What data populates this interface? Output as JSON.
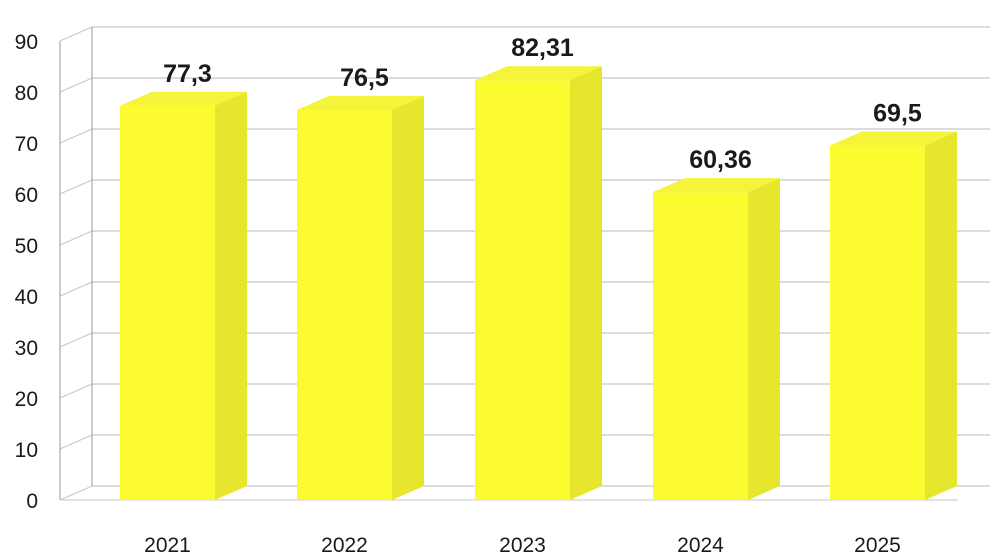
{
  "chart_data": {
    "type": "bar",
    "categories": [
      "2021",
      "2022",
      "2023",
      "2024",
      "2025"
    ],
    "values": [
      77.3,
      76.5,
      82.31,
      60.36,
      69.5
    ],
    "value_labels": [
      "77,3",
      "76,5",
      "82,31",
      "60,36",
      "69,5"
    ],
    "y_ticks": [
      "0",
      "10",
      "20",
      "30",
      "40",
      "50",
      "60",
      "70",
      "80",
      "90"
    ],
    "ylim": [
      0,
      90
    ],
    "grid": true,
    "legend": "none",
    "style": "3d-columns",
    "colors": {
      "bar_front": "#fbfb2f",
      "bar_top": "#f4f43a",
      "bar_side": "#e6e62c",
      "gridline": "#c8c8c8",
      "axis": "#9a9a9a"
    }
  }
}
